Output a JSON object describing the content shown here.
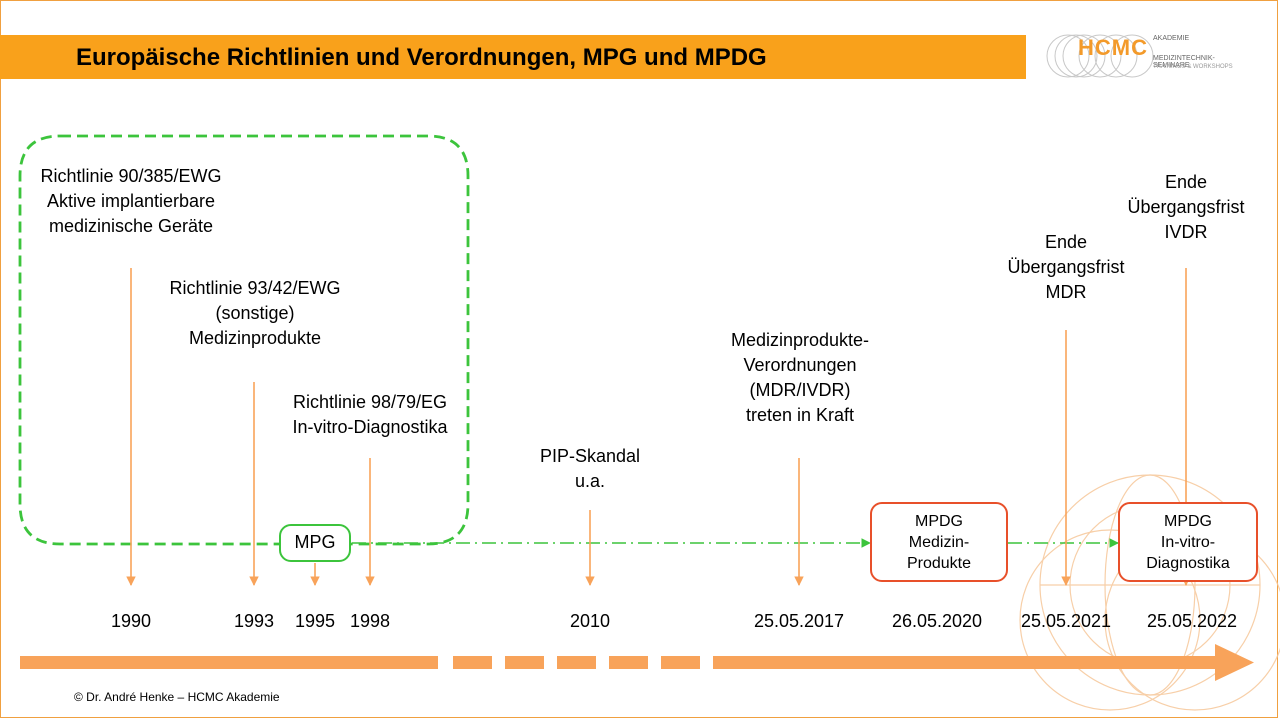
{
  "header": {
    "title": "Europäische Richtlinien und Verordnungen, MPG und MPDG"
  },
  "logo": {
    "brand": "HCMC",
    "line1": "AKADEMIE",
    "line2": "MEDIZINTECHNIK-SEMINARE",
    "line3": "TRAININGS & WORKSHOPS"
  },
  "events": {
    "aimdd": [
      "Richtlinie 90/385/EWG",
      "Aktive implantierbare",
      "medizinische  Geräte"
    ],
    "mdd": [
      "Richtlinie 93/42/EWG",
      "(sonstige)",
      "Medizinprodukte"
    ],
    "ivdd": [
      "Richtlinie 98/79/EG",
      "In-vitro-Diagnostika"
    ],
    "pip": [
      "PIP-Skandal",
      "u.a."
    ],
    "mdr_ivdr": [
      "Medizinprodukte-",
      "Verordnungen",
      "(MDR/IVDR)",
      "treten in Kraft"
    ],
    "end_mdr": [
      "Ende",
      "Übergangsfrist",
      "MDR"
    ],
    "end_ivdr": [
      "Ende",
      "Übergangsfrist",
      "IVDR"
    ]
  },
  "boxes": {
    "mpg": "MPG",
    "mpdg_mp": [
      "MPDG",
      "Medizin-",
      "Produkte"
    ],
    "mpdg_ivd": [
      "MPDG",
      "In-vitro-",
      "Diagnostika"
    ]
  },
  "years": [
    "1990",
    "1993",
    "1995",
    "1998",
    "2010",
    "25.05.2017",
    "26.05.2020",
    "25.05.2021",
    "25.05.2022"
  ],
  "footer": "© Dr. André Henke – HCMC Akademie",
  "colors": {
    "orange": "#f9a11b",
    "arrow": "#f8a35a",
    "green": "#3cc43c",
    "red": "#e8502a"
  }
}
